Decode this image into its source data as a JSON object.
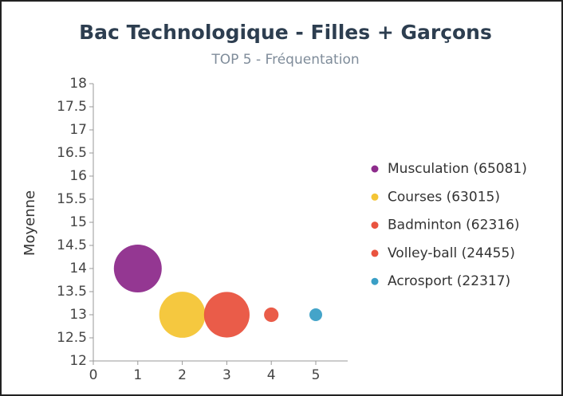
{
  "chart_data": {
    "type": "bubble",
    "title": "Bac Technologique - Filles + Garçons",
    "subtitle": "TOP 5 - Fréquentation",
    "y_label": "Moyenne",
    "xlim": [
      0,
      5
    ],
    "xticks": [
      0,
      1,
      2,
      3,
      4,
      5
    ],
    "ylim": [
      12,
      18
    ],
    "yticks": [
      12,
      12.5,
      13,
      13.5,
      14,
      14.5,
      15,
      15.5,
      16,
      16.5,
      17,
      17.5,
      18
    ],
    "legend": "right",
    "series": [
      {
        "name": "Musculation (65081)",
        "color": "#8e2c8c",
        "x": [
          1
        ],
        "values": [
          14
        ],
        "sizes": [
          65081
        ]
      },
      {
        "name": "Courses (63015)",
        "color": "#f4c535",
        "x": [
          2
        ],
        "values": [
          13
        ],
        "sizes": [
          63015
        ]
      },
      {
        "name": "Badminton (62316)",
        "color": "#e9533f",
        "x": [
          3
        ],
        "values": [
          13
        ],
        "sizes": [
          62316
        ]
      },
      {
        "name": "Volley-ball (24455)",
        "color": "#e9533f",
        "x": [
          4
        ],
        "values": [
          13
        ],
        "sizes": [
          24455
        ]
      },
      {
        "name": "Acrosport (22317)",
        "color": "#3a9fc6",
        "x": [
          5
        ],
        "values": [
          13
        ],
        "sizes": [
          22317
        ]
      }
    ]
  }
}
